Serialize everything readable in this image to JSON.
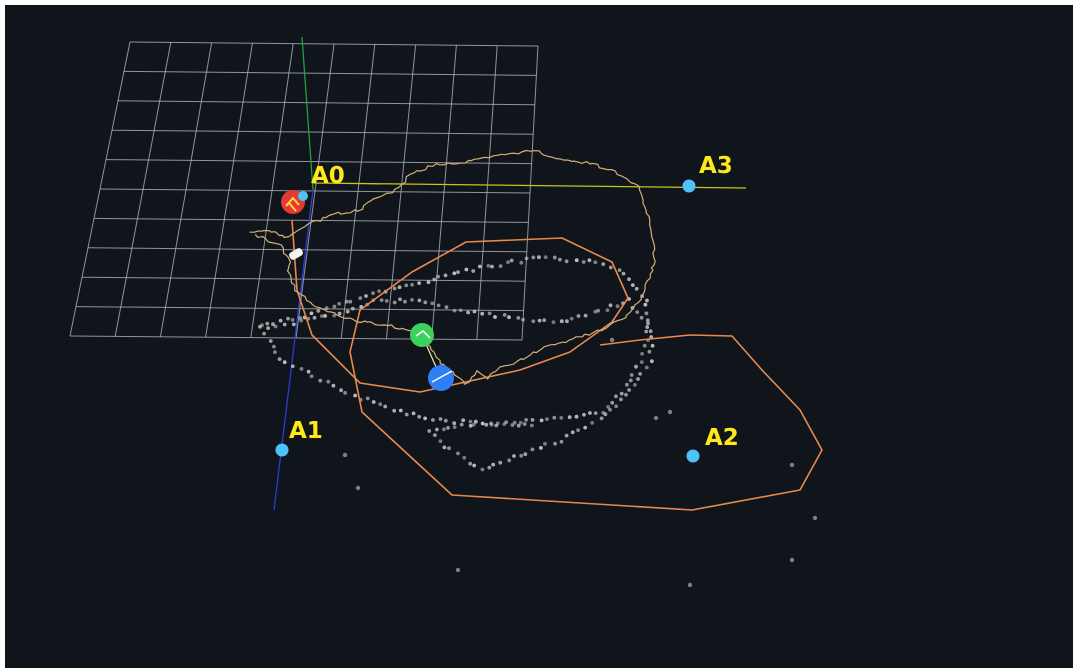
{
  "scene": {
    "background_color": "#10141b",
    "grid_color": "#b9bec6",
    "anchor_color": "#4fc3f7",
    "label_color": "#ffe819",
    "trajectory_color": "#d3b07a",
    "boundary_color": "#e98a4c",
    "point_color": "#c8c8c8",
    "tag_color": "#3ad25a",
    "robot_color": "#2f7ef5",
    "origin_color": "#e53935"
  },
  "anchors": [
    {
      "id": "a0",
      "label": "A0"
    },
    {
      "id": "a1",
      "label": "A1"
    },
    {
      "id": "a2",
      "label": "A2"
    },
    {
      "id": "a3",
      "label": "A3"
    }
  ]
}
